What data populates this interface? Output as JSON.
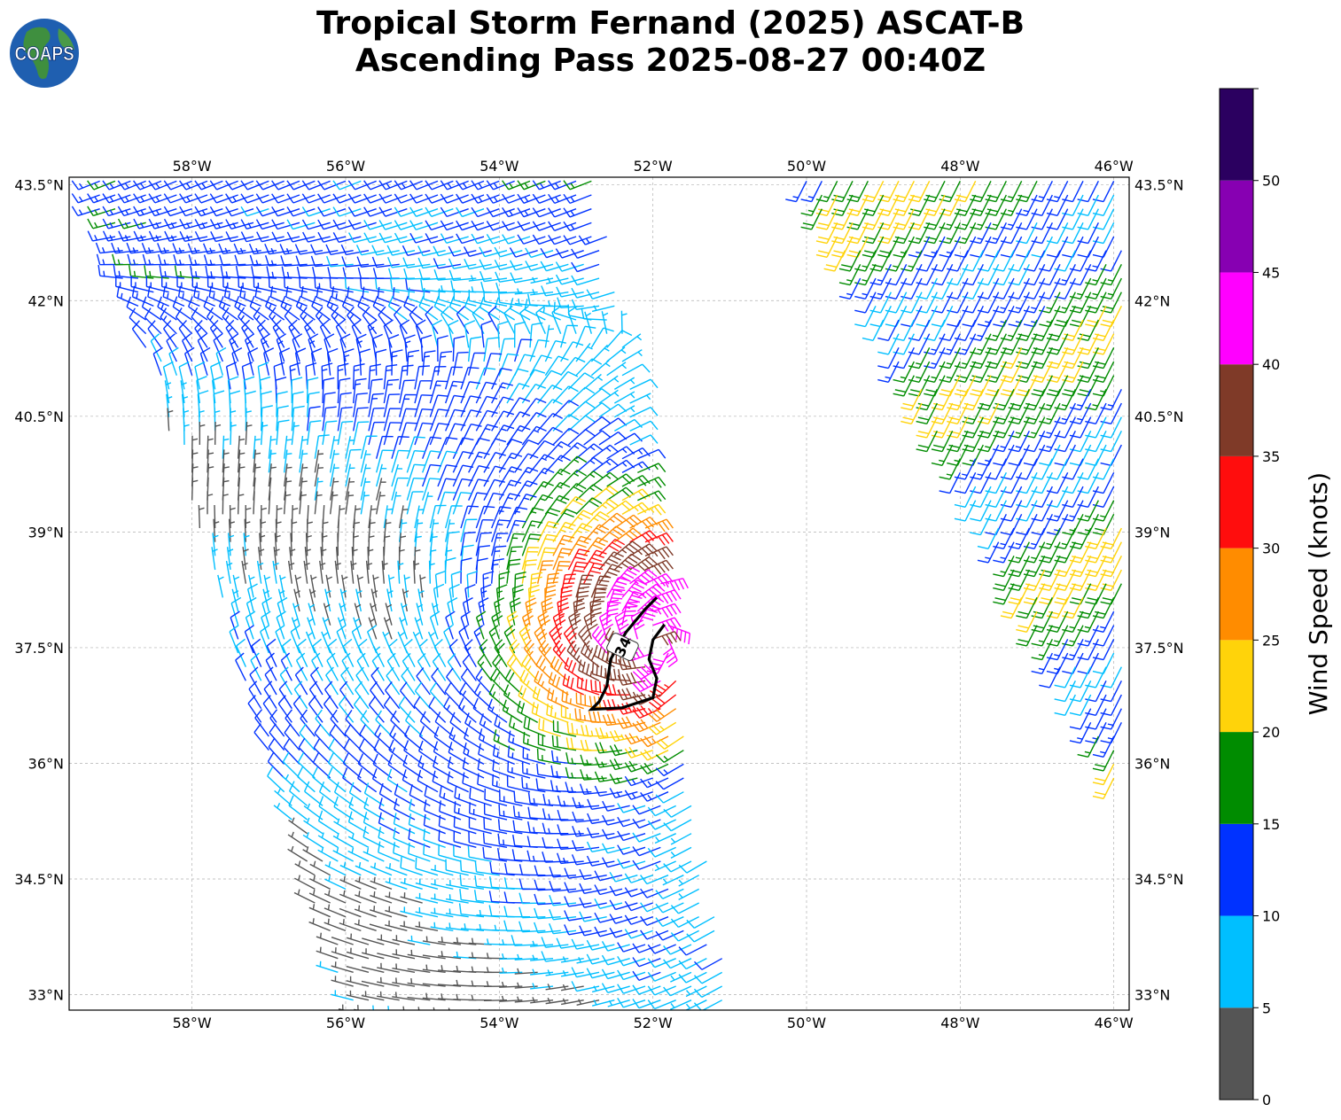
{
  "title": {
    "line1": "Tropical Storm Fernand (2025) ASCAT-B",
    "line2": "Ascending Pass 2025-08-27 00:40Z"
  },
  "logo": {
    "text": "COAPS",
    "icon": "globe-logo-icon"
  },
  "map": {
    "lon_range": [
      -59.6,
      -45.8
    ],
    "lat_range": [
      32.8,
      43.6
    ],
    "lon_ticks": [
      "58°W",
      "56°W",
      "54°W",
      "52°W",
      "50°W",
      "48°W",
      "46°W"
    ],
    "lon_tick_values": [
      -58,
      -56,
      -54,
      -52,
      -50,
      -48,
      -46
    ],
    "lat_ticks": [
      "43.5°N",
      "42°N",
      "40.5°N",
      "39°N",
      "37.5°N",
      "36°N",
      "34.5°N",
      "33°N"
    ],
    "lat_tick_values": [
      43.5,
      42,
      40.5,
      39,
      37.5,
      36,
      34.5,
      33
    ],
    "grid": true,
    "contour_label": "34",
    "storm_center": [
      -52.0,
      37.6
    ]
  },
  "colorbar": {
    "label": "Wind Speed (knots)",
    "ticks": [
      "0",
      "5",
      "10",
      "15",
      "20",
      "25",
      "30",
      "35",
      "40",
      "45",
      "50"
    ],
    "bins": [
      {
        "min": 0,
        "max": 5,
        "color": "#555555"
      },
      {
        "min": 5,
        "max": 10,
        "color": "#00bfff"
      },
      {
        "min": 10,
        "max": 15,
        "color": "#0032ff"
      },
      {
        "min": 15,
        "max": 20,
        "color": "#008c00"
      },
      {
        "min": 20,
        "max": 25,
        "color": "#ffd30a"
      },
      {
        "min": 25,
        "max": 30,
        "color": "#ff8c00"
      },
      {
        "min": 30,
        "max": 35,
        "color": "#ff0d0d"
      },
      {
        "min": 35,
        "max": 40,
        "color": "#7f3a28"
      },
      {
        "min": 40,
        "max": 45,
        "color": "#ff00ff"
      },
      {
        "min": 45,
        "max": 50,
        "color": "#8700b2"
      },
      {
        "min": 50,
        "max": 55,
        "color": "#2b0060"
      }
    ]
  }
}
